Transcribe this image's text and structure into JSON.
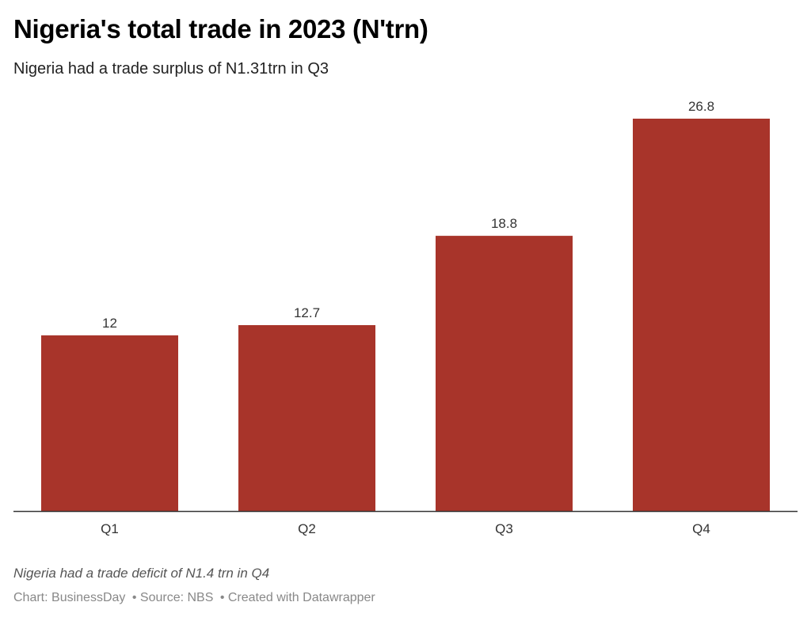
{
  "chart_data": {
    "type": "bar",
    "title": "Nigeria's total trade in 2023 (N'trn)",
    "subtitle": "Nigeria had a trade surplus of N1.31trn in Q3",
    "categories": [
      "Q1",
      "Q2",
      "Q3",
      "Q4"
    ],
    "values": [
      12,
      12.7,
      18.8,
      26.8
    ],
    "value_labels": [
      "12",
      "12.7",
      "18.8",
      "26.8"
    ],
    "xlabel": "",
    "ylabel": "",
    "ylim": [
      0,
      26.8
    ],
    "grid": false,
    "legend": "none",
    "bar_color": "#a8342a",
    "axis_color": "#333333"
  },
  "notes": "Nigeria had a trade deficit of N1.4 trn in Q4",
  "footer": {
    "chart_credit": "Chart: BusinessDay",
    "source": "• Source: NBS",
    "created_with": "• Created with Datawrapper"
  }
}
